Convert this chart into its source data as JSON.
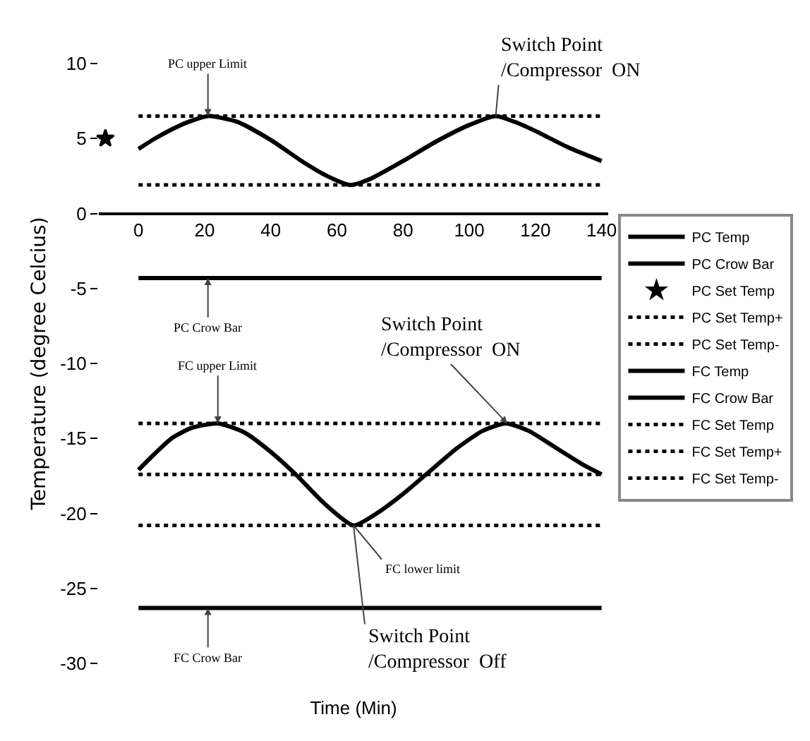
{
  "chart_data": {
    "type": "line",
    "xlabel": "Time (Min)",
    "ylabel": "Temperature (degree Celcius)",
    "xlim": [
      -12,
      142
    ],
    "xticks": [
      0,
      20,
      40,
      60,
      80,
      100,
      120,
      140
    ],
    "ylim": [
      -30,
      10
    ],
    "yticks": [
      10,
      5,
      0,
      -5,
      -10,
      -15,
      -20,
      -25,
      -30
    ],
    "grid": false,
    "legend": "right",
    "marker": "none",
    "series": [
      {
        "name": "PC Temp",
        "color": "#000000",
        "line_style": "solid",
        "x": [
          0,
          5,
          10,
          15,
          21,
          30,
          40,
          50,
          57,
          64,
          70,
          80,
          90,
          100,
          108,
          115,
          120,
          130,
          140
        ],
        "values": [
          4.3,
          5.0,
          5.6,
          6.1,
          6.5,
          6.1,
          4.9,
          3.4,
          2.5,
          1.9,
          2.3,
          3.5,
          4.8,
          5.9,
          6.5,
          6.0,
          5.5,
          4.4,
          3.5
        ]
      },
      {
        "name": "PC Crow Bar",
        "color": "#000000",
        "line_style": "solid",
        "x": [
          0,
          140
        ],
        "values": [
          -4.3,
          -4.3
        ]
      },
      {
        "name": "PC Set Temp",
        "type": "scatter",
        "marker": "star",
        "color": "#000000",
        "x": [
          -10
        ],
        "values": [
          5
        ]
      },
      {
        "name": "PC Set Temp+",
        "color": "#000000",
        "line_style": "dotted",
        "x": [
          0,
          140
        ],
        "values": [
          6.5,
          6.5
        ]
      },
      {
        "name": "PC Set Temp-",
        "color": "#000000",
        "line_style": "dotted",
        "x": [
          0,
          140
        ],
        "values": [
          1.9,
          1.9
        ]
      },
      {
        "name": "FC Temp",
        "color": "#000000",
        "line_style": "solid",
        "x": [
          0,
          5,
          10,
          16,
          24,
          32,
          40,
          48,
          56,
          65,
          72,
          80,
          88,
          96,
          104,
          111,
          118,
          126,
          134,
          140
        ],
        "values": [
          -17.1,
          -16.0,
          -15.0,
          -14.3,
          -14.0,
          -14.6,
          -15.9,
          -17.5,
          -19.3,
          -20.8,
          -20.0,
          -18.7,
          -17.2,
          -15.7,
          -14.5,
          -14.0,
          -14.5,
          -15.6,
          -16.7,
          -17.4
        ]
      },
      {
        "name": "FC Crow Bar",
        "color": "#000000",
        "line_style": "solid",
        "x": [
          0,
          140
        ],
        "values": [
          -26.3,
          -26.3
        ]
      },
      {
        "name": "FC Set Temp",
        "color": "#000000",
        "line_style": "dotted",
        "x": [
          0,
          140
        ],
        "values": [
          -17.4,
          -17.4
        ]
      },
      {
        "name": "FC Set Temp+",
        "color": "#000000",
        "line_style": "dotted",
        "x": [
          0,
          140
        ],
        "values": [
          -14,
          -14
        ]
      },
      {
        "name": "FC Set Temp-",
        "color": "#000000",
        "line_style": "dotted",
        "x": [
          0,
          140
        ],
        "values": [
          -20.8,
          -20.8
        ]
      }
    ],
    "annotations": [
      {
        "text": "PC upper Limit",
        "x": 21,
        "y": 6.5
      },
      {
        "text": "Switch Point\n/Compressor  ON",
        "x": 108,
        "y": 6.5
      },
      {
        "text": "PC Crow Bar",
        "x": 21,
        "y": -4.3
      },
      {
        "text": "FC upper Limit",
        "x": 24,
        "y": -14
      },
      {
        "text": "Switch Point\n/Compressor  ON",
        "x": 111.5,
        "y": -14
      },
      {
        "text": "FC lower limit",
        "x": 65,
        "y": -20.8
      },
      {
        "text": "FC Crow Bar",
        "x": 21,
        "y": -26.3
      },
      {
        "text": "Switch Point\n/Compressor  Off",
        "x": 65,
        "y": -20.8
      }
    ]
  }
}
